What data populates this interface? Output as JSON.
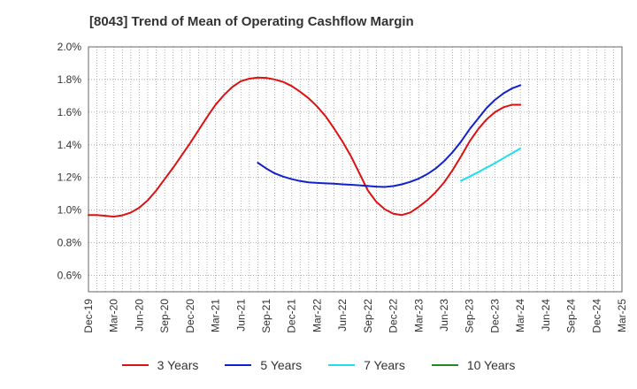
{
  "chart_data": {
    "type": "line",
    "title": "[8043]  Trend of Mean of Operating Cashflow Margin",
    "xlabel": "",
    "ylabel": "",
    "ylim": [
      0.5,
      2.0
    ],
    "yticks": [
      {
        "value": 0.6,
        "label": "0.6%"
      },
      {
        "value": 0.8,
        "label": "0.8%"
      },
      {
        "value": 1.0,
        "label": "1.0%"
      },
      {
        "value": 1.2,
        "label": "1.2%"
      },
      {
        "value": 1.4,
        "label": "1.4%"
      },
      {
        "value": 1.6,
        "label": "1.6%"
      },
      {
        "value": 1.8,
        "label": "1.8%"
      },
      {
        "value": 2.0,
        "label": "2.0%"
      }
    ],
    "x_range": [
      0,
      63
    ],
    "xticks": [
      {
        "index": 0,
        "label": "Dec-19"
      },
      {
        "index": 3,
        "label": "Mar-20"
      },
      {
        "index": 6,
        "label": "Jun-20"
      },
      {
        "index": 9,
        "label": "Sep-20"
      },
      {
        "index": 12,
        "label": "Dec-20"
      },
      {
        "index": 15,
        "label": "Mar-21"
      },
      {
        "index": 18,
        "label": "Jun-21"
      },
      {
        "index": 21,
        "label": "Sep-21"
      },
      {
        "index": 24,
        "label": "Dec-21"
      },
      {
        "index": 27,
        "label": "Mar-22"
      },
      {
        "index": 30,
        "label": "Jun-22"
      },
      {
        "index": 33,
        "label": "Sep-22"
      },
      {
        "index": 36,
        "label": "Dec-22"
      },
      {
        "index": 39,
        "label": "Mar-23"
      },
      {
        "index": 42,
        "label": "Jun-23"
      },
      {
        "index": 45,
        "label": "Sep-23"
      },
      {
        "index": 48,
        "label": "Dec-23"
      },
      {
        "index": 51,
        "label": "Mar-24"
      },
      {
        "index": 54,
        "label": "Jun-24"
      },
      {
        "index": 57,
        "label": "Sep-24"
      },
      {
        "index": 60,
        "label": "Dec-24"
      },
      {
        "index": 63,
        "label": "Mar-25"
      }
    ],
    "grid": true,
    "legend_position": "bottom",
    "series": [
      {
        "name": "3 Years",
        "color": "#dd1111",
        "start_index": 0,
        "values": [
          0.97,
          0.97,
          0.965,
          0.96,
          0.968,
          0.985,
          1.015,
          1.06,
          1.12,
          1.19,
          1.26,
          1.335,
          1.41,
          1.49,
          1.57,
          1.645,
          1.705,
          1.755,
          1.79,
          1.805,
          1.812,
          1.81,
          1.8,
          1.785,
          1.76,
          1.725,
          1.685,
          1.635,
          1.575,
          1.5,
          1.42,
          1.33,
          1.225,
          1.12,
          1.05,
          1.005,
          0.978,
          0.97,
          0.985,
          1.02,
          1.06,
          1.11,
          1.17,
          1.245,
          1.33,
          1.42,
          1.495,
          1.555,
          1.6,
          1.63,
          1.645,
          1.645
        ]
      },
      {
        "name": "5 Years",
        "color": "#1122cc",
        "start_index": 20,
        "values": [
          1.29,
          1.255,
          1.225,
          1.205,
          1.19,
          1.178,
          1.17,
          1.167,
          1.164,
          1.162,
          1.158,
          1.155,
          1.152,
          1.148,
          1.144,
          1.142,
          1.147,
          1.158,
          1.173,
          1.193,
          1.22,
          1.255,
          1.3,
          1.355,
          1.42,
          1.495,
          1.56,
          1.625,
          1.675,
          1.715,
          1.745,
          1.765
        ]
      },
      {
        "name": "7 Years",
        "color": "#22ddee",
        "start_index": 44,
        "values": [
          1.18,
          1.205,
          1.232,
          1.26,
          1.288,
          1.318,
          1.348,
          1.378
        ]
      },
      {
        "name": "10 Years",
        "color": "#228822",
        "start_index": 0,
        "values": []
      }
    ]
  }
}
